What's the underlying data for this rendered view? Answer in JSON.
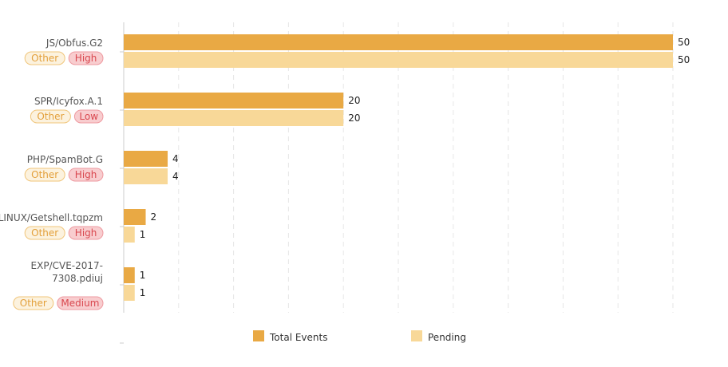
{
  "colors": {
    "total": "#E9A944",
    "pending": "#F8D898",
    "tag_other_fill": "#FCF2DE",
    "tag_other_stroke": "#F0C57A",
    "tag_other_text": "#E3A03B",
    "tag_sev_fill": "#F8CDCF",
    "tag_sev_stroke": "#EE9AA0",
    "tag_sev_text": "#D9484F",
    "grid": "#E6E6E6",
    "axis": "#CCCCCC"
  },
  "chart_data": {
    "type": "bar",
    "orientation": "horizontal",
    "xlim": [
      0,
      55
    ],
    "grid": true,
    "legend_position": "bottom",
    "categories": [
      {
        "name_lines": [
          "JS/Obfus.G2"
        ],
        "tags": [
          "Other",
          "High"
        ]
      },
      {
        "name_lines": [
          "SPR/Icyfox.A.1"
        ],
        "tags": [
          "Other",
          "Low"
        ]
      },
      {
        "name_lines": [
          "PHP/SpamBot.G"
        ],
        "tags": [
          "Other",
          "High"
        ]
      },
      {
        "name_lines": [
          "LINUX/Getshell.tqpzm"
        ],
        "tags": [
          "Other",
          "High"
        ]
      },
      {
        "name_lines": [
          "EXP/CVE-2017-",
          "7308.pdiuj"
        ],
        "tags": [
          "Other",
          "Medium"
        ]
      }
    ],
    "series": [
      {
        "name": "Total Events",
        "values": [
          50,
          20,
          4,
          2,
          1
        ]
      },
      {
        "name": "Pending",
        "values": [
          50,
          20,
          4,
          1,
          1
        ]
      }
    ]
  }
}
